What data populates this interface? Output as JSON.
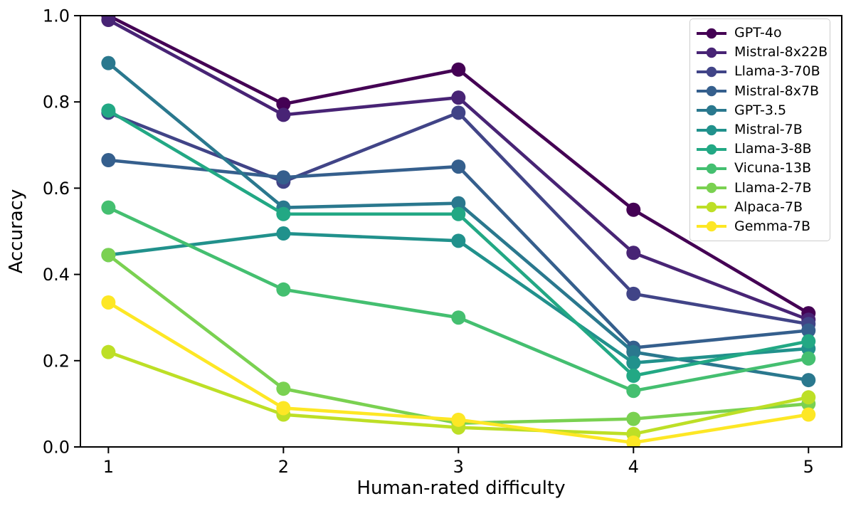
{
  "figure": {
    "background": "#ffffff"
  },
  "chart_data": {
    "type": "line",
    "title": "",
    "xlabel": "Human-rated difficulty",
    "ylabel": "Accuracy",
    "x": [
      1,
      2,
      3,
      4,
      5
    ],
    "x_tick_labels": [
      "1",
      "2",
      "3",
      "4",
      "5"
    ],
    "y_tick_values": [
      0.0,
      0.2,
      0.4,
      0.6,
      0.8,
      1.0
    ],
    "y_tick_labels": [
      "0.0",
      "0.2",
      "0.4",
      "0.6",
      "0.8",
      "1.0"
    ],
    "xlim": [
      0.84,
      5.19
    ],
    "ylim": [
      0.0,
      1.0
    ],
    "grid": false,
    "legend_position": "upper right",
    "marker": "circle",
    "series": [
      {
        "name": "GPT-4o",
        "color": "#440154",
        "values": [
          1.0,
          0.795,
          0.875,
          0.55,
          0.31
        ]
      },
      {
        "name": "Mistral-8x22B",
        "color": "#482475",
        "values": [
          0.99,
          0.77,
          0.81,
          0.45,
          0.295
        ]
      },
      {
        "name": "Llama-3-70B",
        "color": "#414487",
        "values": [
          0.775,
          0.615,
          0.775,
          0.355,
          0.285
        ]
      },
      {
        "name": "Mistral-8x7B",
        "color": "#355f8d",
        "values": [
          0.665,
          0.625,
          0.65,
          0.23,
          0.27
        ]
      },
      {
        "name": "GPT-3.5",
        "color": "#2a788e",
        "values": [
          0.89,
          0.555,
          0.565,
          0.22,
          0.155
        ]
      },
      {
        "name": "Mistral-7B",
        "color": "#21918c",
        "values": [
          0.445,
          0.495,
          0.478,
          0.195,
          0.228
        ]
      },
      {
        "name": "Llama-3-8B",
        "color": "#22a884",
        "values": [
          0.78,
          0.54,
          0.54,
          0.165,
          0.245
        ]
      },
      {
        "name": "Vicuna-13B",
        "color": "#44bf70",
        "values": [
          0.555,
          0.365,
          0.3,
          0.13,
          0.205
        ]
      },
      {
        "name": "Llama-2-7B",
        "color": "#7ad151",
        "values": [
          0.445,
          0.135,
          0.055,
          0.065,
          0.1
        ]
      },
      {
        "name": "Alpaca-7B",
        "color": "#bddf26",
        "values": [
          0.22,
          0.075,
          0.045,
          0.03,
          0.115
        ]
      },
      {
        "name": "Gemma-7B",
        "color": "#fde725",
        "values": [
          0.335,
          0.09,
          0.063,
          0.01,
          0.075
        ]
      }
    ]
  }
}
